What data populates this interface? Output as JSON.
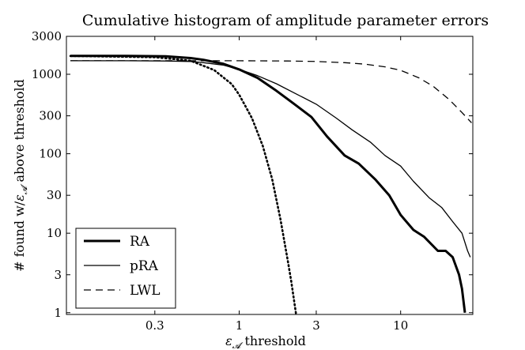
{
  "chart_data": {
    "type": "line",
    "title": "Cumulative histogram of amplitude parameter errors",
    "xlabel_symbol": "ε",
    "xlabel_subscript": "𝓐",
    "xlabel_rest": " threshold",
    "ylabel_before": "# found w/",
    "ylabel_symbol": "ε",
    "ylabel_subscript": "𝓐",
    "ylabel_after": " above threshold",
    "x_scale": "log",
    "y_scale": "log",
    "xlim": [
      0.085,
      28
    ],
    "ylim": [
      0.95,
      3000
    ],
    "xticks": [
      0.3,
      1,
      3,
      10
    ],
    "xtick_labels": [
      "0.3",
      "1",
      "3",
      "10"
    ],
    "yticks": [
      1,
      3,
      10,
      30,
      100,
      300,
      1000,
      3000
    ],
    "ytick_labels": [
      "1",
      "3",
      "10",
      "30",
      "100",
      "300",
      "1000",
      "3000"
    ],
    "grid": false,
    "legend_position": "lower-left",
    "series": [
      {
        "name": "RA",
        "style": "solid-thick",
        "x": [
          0.09,
          0.2,
          0.35,
          0.5,
          0.6,
          0.8,
          1.0,
          1.3,
          1.7,
          2.2,
          2.8,
          3.5,
          4.5,
          5.5,
          7.0,
          8.5,
          10.0,
          12.0,
          14.0,
          17.0,
          19.0,
          21.0,
          23.0,
          24.0,
          25.0
        ],
        "y": [
          1700,
          1700,
          1680,
          1600,
          1520,
          1350,
          1150,
          900,
          620,
          420,
          290,
          165,
          95,
          75,
          47,
          30,
          17,
          11,
          9,
          6,
          6,
          5,
          3,
          2,
          1
        ]
      },
      {
        "name": "pRA",
        "style": "solid-thin",
        "x": [
          0.09,
          0.2,
          0.35,
          0.5,
          0.6,
          0.8,
          1.0,
          1.3,
          1.7,
          2.2,
          3.0,
          4.0,
          5.0,
          6.5,
          8.0,
          10.0,
          12.0,
          15.0,
          18.0,
          21.0,
          24.0,
          26.0,
          27.0
        ],
        "y": [
          1480,
          1480,
          1470,
          1450,
          1400,
          1300,
          1150,
          960,
          760,
          580,
          420,
          280,
          200,
          140,
          95,
          70,
          45,
          28,
          21,
          14,
          10,
          6,
          5
        ]
      },
      {
        "name": "LWL",
        "style": "dashed",
        "x": [
          0.09,
          0.3,
          1.0,
          2.0,
          3.0,
          4.5,
          6.0,
          8.0,
          10.0,
          13.0,
          16.0,
          20.0,
          24.0,
          27.5
        ],
        "y": [
          1480,
          1480,
          1480,
          1470,
          1450,
          1400,
          1340,
          1240,
          1120,
          900,
          700,
          480,
          330,
          245
        ]
      },
      {
        "name": "",
        "style": "dotted",
        "x": [
          0.09,
          0.3,
          0.5,
          0.7,
          0.9,
          1.0,
          1.2,
          1.4,
          1.6,
          1.8,
          2.0,
          2.1,
          2.2,
          2.25
        ],
        "y": [
          1700,
          1640,
          1480,
          1130,
          750,
          550,
          280,
          125,
          48,
          15,
          4.5,
          2.5,
          1.3,
          0.95
        ]
      }
    ]
  }
}
